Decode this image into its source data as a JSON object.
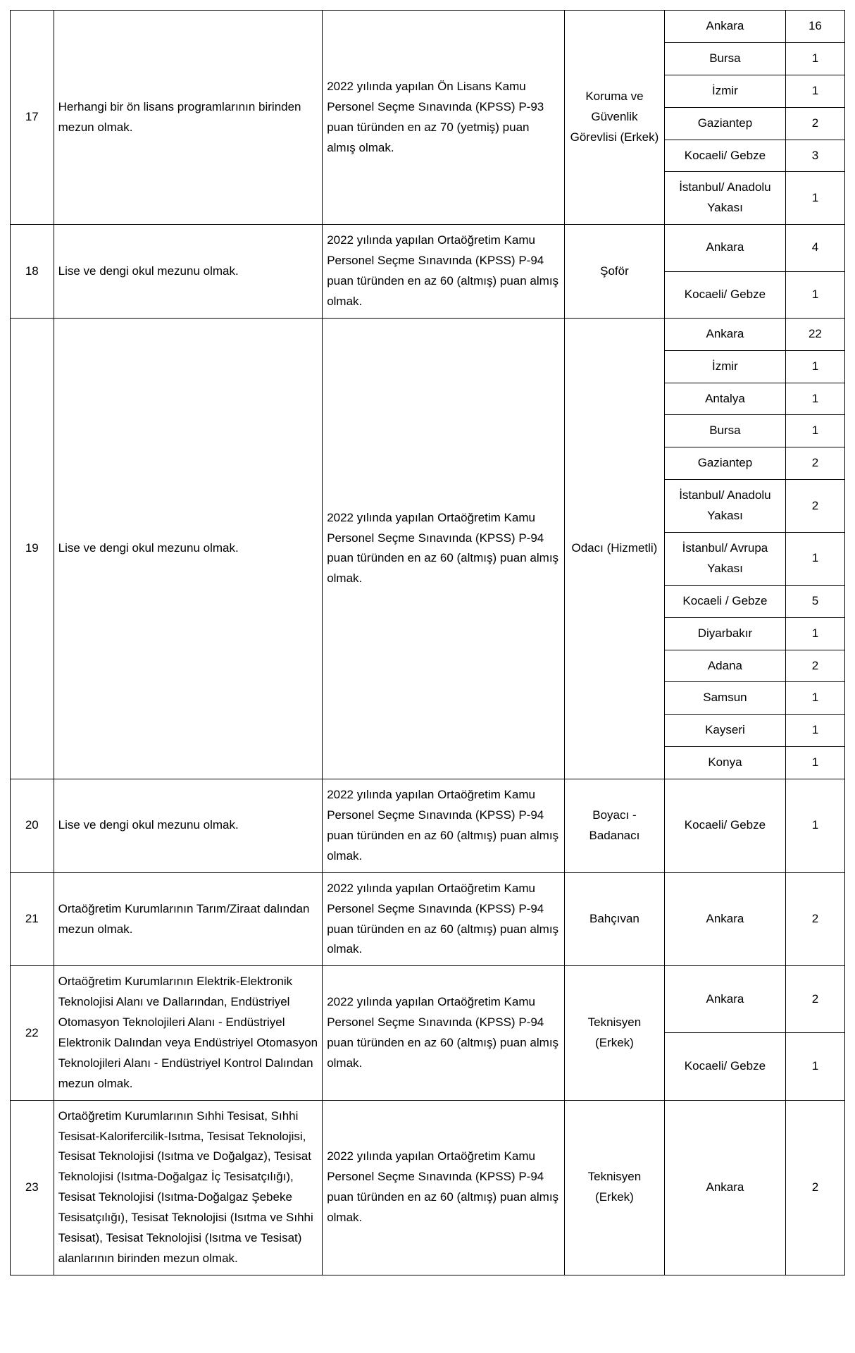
{
  "rows": [
    {
      "num": "17",
      "edu": "Herhangi bir ön lisans programlarının birinden mezun olmak.",
      "exam": "2022 yılında yapılan Ön Lisans Kamu Personel Seçme Sınavında (KPSS) P-93 puan türünden en az 70 (yetmiş) puan almış olmak.",
      "title": "Koruma ve Güvenlik Görevlisi (Erkek)",
      "locs": [
        {
          "loc": "Ankara",
          "cnt": "16"
        },
        {
          "loc": "Bursa",
          "cnt": "1"
        },
        {
          "loc": "İzmir",
          "cnt": "1"
        },
        {
          "loc": "Gaziantep",
          "cnt": "2"
        },
        {
          "loc": "Kocaeli/ Gebze",
          "cnt": "3"
        },
        {
          "loc": "İstanbul/ Anadolu Yakası",
          "cnt": "1"
        }
      ]
    },
    {
      "num": "18",
      "edu": "Lise ve dengi okul mezunu olmak.",
      "exam": "2022 yılında yapılan Ortaöğretim Kamu Personel Seçme Sınavında (KPSS) P-94 puan türünden en az 60 (altmış) puan almış olmak.",
      "title": "Şoför",
      "locs": [
        {
          "loc": "Ankara",
          "cnt": "4"
        },
        {
          "loc": "Kocaeli/ Gebze",
          "cnt": "1"
        }
      ]
    },
    {
      "num": "19",
      "edu": "Lise ve dengi okul mezunu olmak.",
      "exam": "2022 yılında yapılan Ortaöğretim Kamu Personel Seçme Sınavında (KPSS) P-94 puan türünden en az 60 (altmış) puan almış olmak.",
      "title": "Odacı (Hizmetli)",
      "locs": [
        {
          "loc": "Ankara",
          "cnt": "22"
        },
        {
          "loc": "İzmir",
          "cnt": "1"
        },
        {
          "loc": "Antalya",
          "cnt": "1"
        },
        {
          "loc": "Bursa",
          "cnt": "1"
        },
        {
          "loc": "Gaziantep",
          "cnt": "2"
        },
        {
          "loc": "İstanbul/ Anadolu Yakası",
          "cnt": "2"
        },
        {
          "loc": "İstanbul/ Avrupa Yakası",
          "cnt": "1"
        },
        {
          "loc": "Kocaeli / Gebze",
          "cnt": "5"
        },
        {
          "loc": "Diyarbakır",
          "cnt": "1"
        },
        {
          "loc": "Adana",
          "cnt": "2"
        },
        {
          "loc": "Samsun",
          "cnt": "1"
        },
        {
          "loc": "Kayseri",
          "cnt": "1"
        },
        {
          "loc": "Konya",
          "cnt": "1"
        }
      ]
    },
    {
      "num": "20",
      "edu": "Lise ve dengi okul mezunu olmak.",
      "exam": "2022 yılında yapılan Ortaöğretim Kamu Personel Seçme Sınavında (KPSS) P-94 puan türünden en az 60 (altmış) puan almış olmak.",
      "title": "Boyacı - Badanacı",
      "locs": [
        {
          "loc": "Kocaeli/ Gebze",
          "cnt": "1"
        }
      ]
    },
    {
      "num": "21",
      "edu": "Ortaöğretim Kurumlarının Tarım/Ziraat dalından mezun olmak.",
      "exam": "2022 yılında yapılan Ortaöğretim Kamu Personel Seçme Sınavında (KPSS) P-94 puan türünden en az 60 (altmış) puan almış olmak.",
      "title": "Bahçıvan",
      "locs": [
        {
          "loc": "Ankara",
          "cnt": "2"
        }
      ]
    },
    {
      "num": "22",
      "edu": "Ortaöğretim Kurumlarının Elektrik-Elektronik Teknolojisi Alanı ve Dallarından, Endüstriyel Otomasyon Teknolojileri Alanı - Endüstriyel Elektronik Dalından veya Endüstriyel Otomasyon Teknolojileri Alanı - Endüstriyel Kontrol Dalından mezun olmak.",
      "exam": "2022 yılında yapılan Ortaöğretim Kamu Personel Seçme Sınavında (KPSS) P-94 puan türünden en az 60 (altmış) puan almış olmak.",
      "title": "Teknisyen (Erkek)",
      "locs": [
        {
          "loc": "Ankara",
          "cnt": "2"
        },
        {
          "loc": "Kocaeli/ Gebze",
          "cnt": "1"
        }
      ]
    },
    {
      "num": "23",
      "edu": "Ortaöğretim Kurumlarının Sıhhi Tesisat, Sıhhi Tesisat-Kalorifercilik-Isıtma, Tesisat Teknolojisi, Tesisat Teknolojisi (Isıtma ve Doğalgaz), Tesisat Teknolojisi (Isıtma-Doğalgaz İç Tesisatçılığı), Tesisat Teknolojisi (Isıtma-Doğalgaz Şebeke Tesisatçılığı), Tesisat Teknolojisi (Isıtma ve Sıhhi Tesisat), Tesisat Teknolojisi (Isıtma ve Tesisat) alanlarının birinden mezun olmak.",
      "exam": "2022 yılında yapılan Ortaöğretim Kamu Personel Seçme Sınavında (KPSS) P-94 puan türünden en az 60 (altmış) puan almış olmak.",
      "title": "Teknisyen (Erkek)",
      "locs": [
        {
          "loc": "Ankara",
          "cnt": "2"
        }
      ]
    }
  ],
  "styling": {
    "type": "table",
    "font_family": "Arial",
    "font_size_pt": 12,
    "text_color": "#000000",
    "border_color": "#000000",
    "background_color": "#ffffff",
    "column_widths_pct": [
      5.2,
      32.2,
      29,
      12,
      14.5,
      7.1
    ],
    "column_alignments": [
      "center",
      "left",
      "left",
      "center",
      "center",
      "center"
    ],
    "line_height": 1.7
  }
}
